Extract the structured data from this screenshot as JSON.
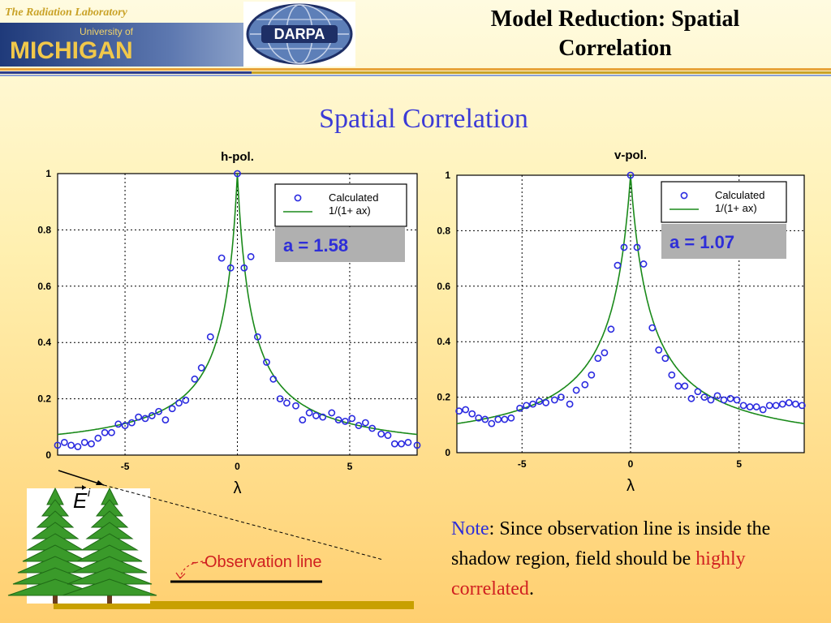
{
  "header": {
    "lab": "The Radiation Laboratory",
    "univ_of": "University of",
    "michigan": "MICHIGAN",
    "darpa": "DARPA",
    "title_line1": "Model Reduction: Spatial",
    "title_line2": "Correlation"
  },
  "subtitle": "Spatial Correlation",
  "chart_data": [
    {
      "type": "scatter",
      "title": "h-pol.",
      "xlabel": "λ",
      "ylabel": "",
      "xlim": [
        -8,
        8
      ],
      "ylim": [
        0,
        1
      ],
      "xticks": [
        -5,
        0,
        5
      ],
      "yticks": [
        0,
        0.2,
        0.4,
        0.6,
        0.8,
        1
      ],
      "grid": true,
      "legend_position": "top-right",
      "legend": [
        "Calculated",
        "1/(1+ ax)"
      ],
      "annotation": "a = 1.58",
      "fit_a": 1.58,
      "series": [
        {
          "name": "Calculated",
          "marker": "circle",
          "points": [
            [
              -8,
              0.035
            ],
            [
              -7.7,
              0.045
            ],
            [
              -7.4,
              0.035
            ],
            [
              -7.1,
              0.03
            ],
            [
              -6.8,
              0.045
            ],
            [
              -6.5,
              0.04
            ],
            [
              -6.2,
              0.06
            ],
            [
              -5.9,
              0.08
            ],
            [
              -5.6,
              0.08
            ],
            [
              -5.3,
              0.11
            ],
            [
              -5.0,
              0.105
            ],
            [
              -4.7,
              0.115
            ],
            [
              -4.4,
              0.135
            ],
            [
              -4.1,
              0.13
            ],
            [
              -3.8,
              0.14
            ],
            [
              -3.5,
              0.155
            ],
            [
              -3.2,
              0.125
            ],
            [
              -2.9,
              0.165
            ],
            [
              -2.6,
              0.185
            ],
            [
              -2.3,
              0.195
            ],
            [
              -1.9,
              0.27
            ],
            [
              -1.6,
              0.31
            ],
            [
              -1.2,
              0.42
            ],
            [
              -0.7,
              0.7
            ],
            [
              -0.3,
              0.665
            ],
            [
              0,
              1.0
            ],
            [
              0.3,
              0.665
            ],
            [
              0.6,
              0.705
            ],
            [
              0.9,
              0.42
            ],
            [
              1.3,
              0.33
            ],
            [
              1.6,
              0.27
            ],
            [
              1.9,
              0.2
            ],
            [
              2.2,
              0.185
            ],
            [
              2.6,
              0.175
            ],
            [
              2.9,
              0.125
            ],
            [
              3.2,
              0.15
            ],
            [
              3.5,
              0.14
            ],
            [
              3.8,
              0.135
            ],
            [
              4.2,
              0.15
            ],
            [
              4.5,
              0.125
            ],
            [
              4.8,
              0.12
            ],
            [
              5.1,
              0.13
            ],
            [
              5.4,
              0.105
            ],
            [
              5.7,
              0.115
            ],
            [
              6.0,
              0.095
            ],
            [
              6.4,
              0.075
            ],
            [
              6.7,
              0.07
            ],
            [
              7.0,
              0.04
            ],
            [
              7.3,
              0.04
            ],
            [
              7.6,
              0.045
            ],
            [
              8.0,
              0.035
            ]
          ]
        },
        {
          "name": "1/(1+ ax)",
          "type": "line",
          "color": "#1a8a1a",
          "formula": "1/(1+a|x|)"
        }
      ]
    },
    {
      "type": "scatter",
      "title": "v-pol.",
      "xlabel": "λ",
      "ylabel": "",
      "xlim": [
        -8,
        8
      ],
      "ylim": [
        0,
        1
      ],
      "xticks": [
        -5,
        0,
        5
      ],
      "yticks": [
        0,
        0.2,
        0.4,
        0.6,
        0.8,
        1
      ],
      "grid": true,
      "legend_position": "top-right",
      "legend": [
        "Calculated",
        "1/(1+ ax)"
      ],
      "annotation": "a = 1.07",
      "fit_a": 1.07,
      "series": [
        {
          "name": "Calculated",
          "marker": "circle",
          "points": [
            [
              -7.9,
              0.15
            ],
            [
              -7.6,
              0.155
            ],
            [
              -7.3,
              0.14
            ],
            [
              -7.0,
              0.125
            ],
            [
              -6.7,
              0.12
            ],
            [
              -6.4,
              0.105
            ],
            [
              -6.1,
              0.12
            ],
            [
              -5.8,
              0.12
            ],
            [
              -5.5,
              0.125
            ],
            [
              -5.1,
              0.16
            ],
            [
              -4.8,
              0.17
            ],
            [
              -4.5,
              0.175
            ],
            [
              -4.2,
              0.185
            ],
            [
              -3.9,
              0.18
            ],
            [
              -3.5,
              0.19
            ],
            [
              -3.2,
              0.2
            ],
            [
              -2.8,
              0.175
            ],
            [
              -2.5,
              0.225
            ],
            [
              -2.1,
              0.245
            ],
            [
              -1.8,
              0.28
            ],
            [
              -1.5,
              0.34
            ],
            [
              -1.2,
              0.36
            ],
            [
              -0.9,
              0.445
            ],
            [
              -0.6,
              0.675
            ],
            [
              -0.3,
              0.74
            ],
            [
              0,
              1.0
            ],
            [
              0.3,
              0.74
            ],
            [
              0.6,
              0.68
            ],
            [
              1.0,
              0.45
            ],
            [
              1.3,
              0.37
            ],
            [
              1.6,
              0.34
            ],
            [
              1.9,
              0.28
            ],
            [
              2.2,
              0.24
            ],
            [
              2.5,
              0.24
            ],
            [
              2.8,
              0.195
            ],
            [
              3.1,
              0.22
            ],
            [
              3.4,
              0.2
            ],
            [
              3.7,
              0.19
            ],
            [
              4.0,
              0.205
            ],
            [
              4.3,
              0.19
            ],
            [
              4.6,
              0.195
            ],
            [
              4.9,
              0.19
            ],
            [
              5.2,
              0.17
            ],
            [
              5.5,
              0.165
            ],
            [
              5.8,
              0.165
            ],
            [
              6.1,
              0.155
            ],
            [
              6.4,
              0.17
            ],
            [
              6.7,
              0.17
            ],
            [
              7.0,
              0.175
            ],
            [
              7.3,
              0.18
            ],
            [
              7.6,
              0.175
            ],
            [
              7.9,
              0.17
            ]
          ]
        },
        {
          "name": "1/(1+ ax)",
          "type": "line",
          "color": "#1a8a1a",
          "formula": "1/(1+a|x|)"
        }
      ]
    }
  ],
  "diagram": {
    "field_label": "E",
    "field_superscript": "i",
    "observation_label": "Observation line"
  },
  "note": {
    "lead": "Note",
    "text": ": Since observation line is inside the shadow region, field should be ",
    "highlight": "highly correlated",
    "end": "."
  },
  "colors": {
    "marker": "#2a2ae0",
    "fit": "#1a8a1a",
    "subtitle": "#3b3bd6",
    "highlight": "#d02020",
    "annotation": "#2e2ed8",
    "annotation_bg": "#b0b0b0"
  }
}
